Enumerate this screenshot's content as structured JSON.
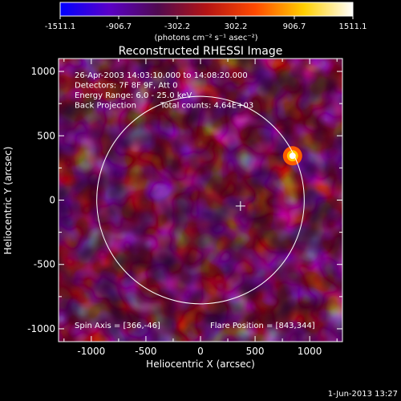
{
  "colorbar": {
    "ticks": [
      "-1511.1",
      "-906.7",
      "-302.2",
      "302.2",
      "906.7",
      "1511.1"
    ],
    "unit": "(photons cm⁻² s⁻¹ asec⁻²)",
    "stops": [
      "#0000ff",
      "#5a00c8",
      "#500a50",
      "#b41414",
      "#ff4a00",
      "#ffd000",
      "#ffffff"
    ]
  },
  "chart_data": {
    "type": "heatmap",
    "title": "Reconstructed RHESSI Image",
    "xlabel": "Heliocentric X (arcsec)",
    "ylabel": "Heliocentric Y (arcsec)",
    "xlim": [
      -1300,
      1300
    ],
    "ylim": [
      -1100,
      1100
    ],
    "xticks": [
      -1000,
      -500,
      0,
      500,
      1000
    ],
    "yticks": [
      -1000,
      -500,
      0,
      500,
      1000
    ],
    "solar_disk": {
      "center": [
        0,
        0
      ],
      "radius_arcsec": 950
    },
    "spin_axis": [
      366,
      -46
    ],
    "flare_position": [
      843,
      344
    ],
    "bright_source": {
      "x": 843,
      "y": 344
    },
    "value_range": [
      -1511.1,
      1511.1
    ],
    "annotations": [
      "26-Apr-2003 14:03:10.000 to 14:08:20.000",
      "Detectors: 7F 8F 9F, Att 0",
      "Energy Range: 6.0 - 25.0 keV",
      "Back Projection",
      "Total counts: 4.64E+03"
    ],
    "footer_left": "Spin Axis = [366,-46]",
    "footer_right": "Flare Position = [843,344]"
  },
  "timestamp": "1-Jun-2013 13:27"
}
